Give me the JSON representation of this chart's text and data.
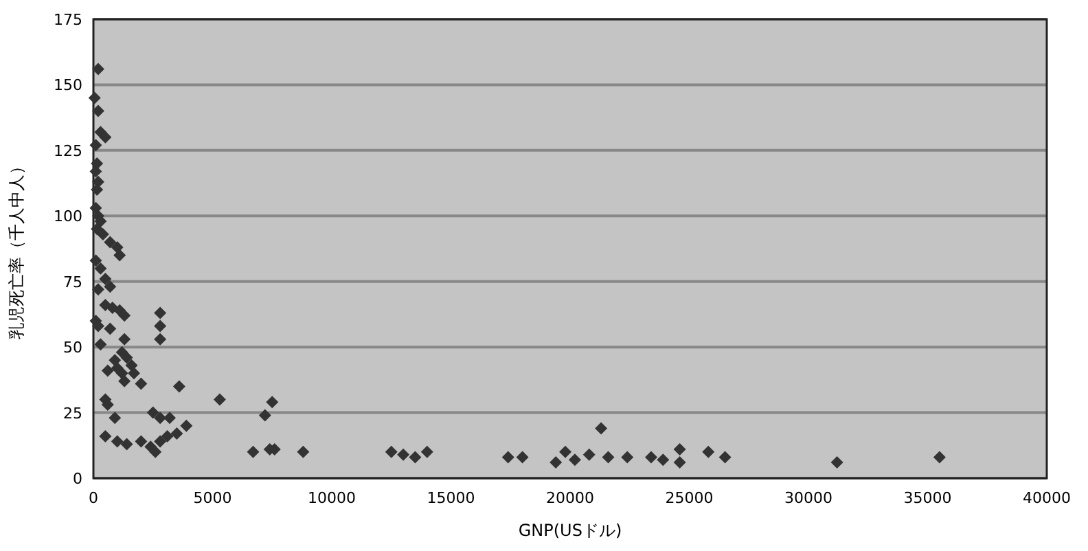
{
  "chart_data": {
    "type": "scatter",
    "xlabel": "GNP(USドル)",
    "ylabel": "乳児死亡率（千人中人）",
    "xlim": [
      0,
      40000
    ],
    "ylim": [
      0,
      175
    ],
    "xticks": [
      0,
      5000,
      10000,
      15000,
      20000,
      25000,
      30000,
      35000,
      40000
    ],
    "yticks": [
      0,
      25,
      50,
      75,
      100,
      125,
      150,
      175
    ],
    "grid": "y",
    "marker": "diamond",
    "series": [
      {
        "color": "#333333",
        "x": [
          200,
          50,
          200,
          300,
          500,
          100,
          150,
          100,
          200,
          150,
          100,
          200,
          300,
          150,
          400,
          700,
          1000,
          1100,
          100,
          300,
          500,
          700,
          200,
          500,
          800,
          1100,
          1300,
          100,
          200,
          700,
          1300,
          300,
          2800,
          2800,
          2800,
          1200,
          900,
          1400,
          1600,
          1000,
          1200,
          1700,
          600,
          1300,
          2000,
          3600,
          500,
          600,
          900,
          2500,
          2800,
          3200,
          3900,
          500,
          1000,
          1400,
          2000,
          2400,
          2800,
          2600,
          3100,
          3500,
          5300,
          7500,
          7200,
          6700,
          7600,
          7400,
          8800,
          12500,
          13000,
          13500,
          14000,
          17400,
          18000,
          19400,
          19800,
          20200,
          20800,
          21300,
          21600,
          22400,
          23400,
          23900,
          24600,
          24600,
          25800,
          26500,
          31200,
          35500
        ],
        "values": [
          156,
          145,
          140,
          132,
          130,
          127,
          120,
          117,
          113,
          110,
          103,
          100,
          98,
          95,
          93,
          90,
          88,
          85,
          83,
          80,
          76,
          73,
          72,
          66,
          65,
          64,
          62,
          60,
          58,
          57,
          53,
          51,
          63,
          58,
          53,
          48,
          45,
          46,
          43,
          42,
          40,
          40,
          41,
          37,
          36,
          35,
          30,
          28,
          23,
          25,
          23,
          23,
          20,
          16,
          14,
          13,
          14,
          12,
          14,
          10,
          16,
          17,
          30,
          29,
          24,
          10,
          11,
          11,
          10,
          10,
          9,
          8,
          10,
          8,
          8,
          6,
          10,
          7,
          9,
          19,
          8,
          8,
          8,
          7,
          11,
          6,
          10,
          8,
          6,
          8
        ]
      }
    ]
  }
}
